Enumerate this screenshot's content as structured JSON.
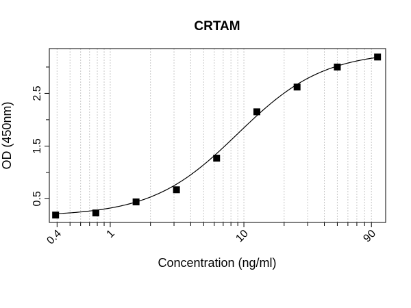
{
  "chart_data": {
    "type": "scatter",
    "title": "CRTAM",
    "xlabel": "Concentration (ng/ml)",
    "ylabel": "OD (450nm)",
    "x_scale": "log",
    "xlim": [
      0.35,
      115
    ],
    "ylim": [
      0.05,
      3.35
    ],
    "x_ticks": [
      {
        "value": 0.4,
        "label": "0.4"
      },
      {
        "value": 1,
        "label": "1"
      },
      {
        "value": 10,
        "label": "10"
      },
      {
        "value": 90,
        "label": "90"
      }
    ],
    "x_minor_ticks": [
      0.5,
      0.6,
      0.7,
      0.8,
      0.9,
      2,
      3,
      4,
      5,
      6,
      7,
      8,
      9,
      20,
      30,
      40,
      50,
      60,
      70,
      80
    ],
    "y_ticks": [
      {
        "value": 0.5,
        "label": "0.5"
      },
      {
        "value": 1.5,
        "label": "1.5"
      },
      {
        "value": 2.5,
        "label": "2.5"
      }
    ],
    "y_minor_ticks": [
      1,
      2,
      3
    ],
    "grid": "vertical dotted at x ticks",
    "series": [
      {
        "marker": "square",
        "color": "#000000",
        "x": [
          0.39,
          0.78,
          1.56,
          3.13,
          6.25,
          12.5,
          25,
          50,
          100
        ],
        "y": [
          0.19,
          0.23,
          0.44,
          0.67,
          1.27,
          2.15,
          2.62,
          3.0,
          3.19
        ]
      }
    ],
    "fit_curve": {
      "type": "4PL",
      "min": 0.17,
      "max": 3.3,
      "ec50": 9.0,
      "hill": 1.35,
      "color": "#000000"
    }
  }
}
